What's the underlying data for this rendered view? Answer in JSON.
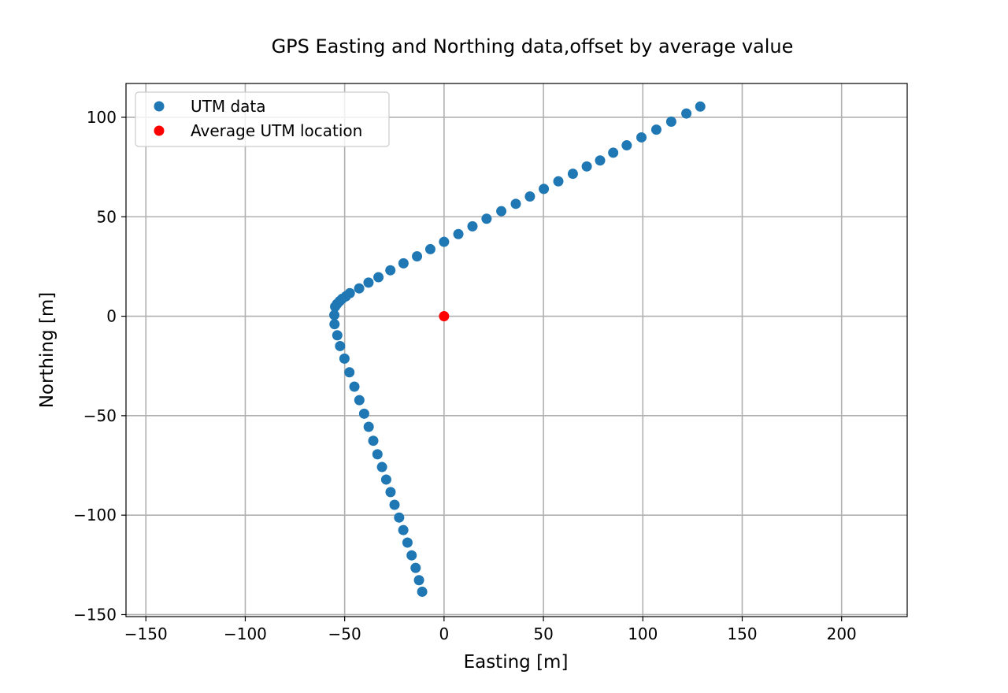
{
  "chart_data": {
    "type": "scatter",
    "title": "GPS Easting and Northing data,offset by average value",
    "xlabel": "Easting [m]",
    "ylabel": "Northing [m]",
    "xlim": [
      -160,
      233
    ],
    "ylim": [
      -151,
      117
    ],
    "xticks": [
      -150,
      -100,
      -50,
      0,
      50,
      100,
      150,
      200
    ],
    "yticks": [
      -150,
      -100,
      -50,
      0,
      50,
      100
    ],
    "xtick_labels": [
      "−150",
      "−100",
      "−50",
      "0",
      "50",
      "100",
      "150",
      "200"
    ],
    "ytick_labels": [
      "−150",
      "−100",
      "−50",
      "0",
      "50",
      "100"
    ],
    "grid": true,
    "legend_position": "upper-left",
    "series": [
      {
        "name": "UTM data",
        "color": "#1f77b4",
        "points": [
          [
            -11,
            -138.5
          ],
          [
            -12.6,
            -132.7
          ],
          [
            -14.3,
            -126.5
          ],
          [
            -16.3,
            -120.2
          ],
          [
            -18.4,
            -113.8
          ],
          [
            -20.5,
            -107.5
          ],
          [
            -22.6,
            -101.2
          ],
          [
            -24.9,
            -94.8
          ],
          [
            -26.9,
            -88.4
          ],
          [
            -29.1,
            -82.1
          ],
          [
            -31.2,
            -75.8
          ],
          [
            -33.5,
            -69.4
          ],
          [
            -35.6,
            -62.6
          ],
          [
            -37.9,
            -55.6
          ],
          [
            -40.2,
            -49.0
          ],
          [
            -42.6,
            -42.2
          ],
          [
            -45.1,
            -35.4
          ],
          [
            -47.6,
            -28.2
          ],
          [
            -50.1,
            -21.3
          ],
          [
            -52.3,
            -15.0
          ],
          [
            -53.7,
            -9.6
          ],
          [
            -55.1,
            -4.0
          ],
          [
            -55.2,
            0.6
          ],
          [
            -54.8,
            4.8
          ],
          [
            -53.8,
            6.2
          ],
          [
            -52.5,
            7.6
          ],
          [
            -51.2,
            8.8
          ],
          [
            -49.4,
            10.0
          ],
          [
            -47.4,
            11.6
          ],
          [
            -42.7,
            14.0
          ],
          [
            -38.0,
            16.9
          ],
          [
            -33.0,
            19.6
          ],
          [
            -27.0,
            23.1
          ],
          [
            -20.4,
            26.6
          ],
          [
            -13.6,
            30.1
          ],
          [
            -6.9,
            33.7
          ],
          [
            0,
            37.4
          ],
          [
            7.2,
            41.3
          ],
          [
            14.3,
            45.2
          ],
          [
            21.4,
            49.0
          ],
          [
            28.8,
            52.8
          ],
          [
            36.1,
            56.5
          ],
          [
            43.2,
            60.2
          ],
          [
            50.2,
            64.0
          ],
          [
            57.5,
            67.8
          ],
          [
            64.8,
            71.6
          ],
          [
            71.8,
            75.3
          ],
          [
            78.5,
            78.3
          ],
          [
            85.1,
            82.2
          ],
          [
            91.9,
            85.9
          ],
          [
            99.3,
            89.9
          ],
          [
            106.8,
            93.8
          ],
          [
            114.3,
            97.8
          ],
          [
            121.9,
            101.9
          ],
          [
            128.9,
            105.4
          ]
        ]
      },
      {
        "name": "Average UTM location",
        "color": "#ff0000",
        "points": [
          [
            0,
            0
          ]
        ]
      }
    ]
  }
}
